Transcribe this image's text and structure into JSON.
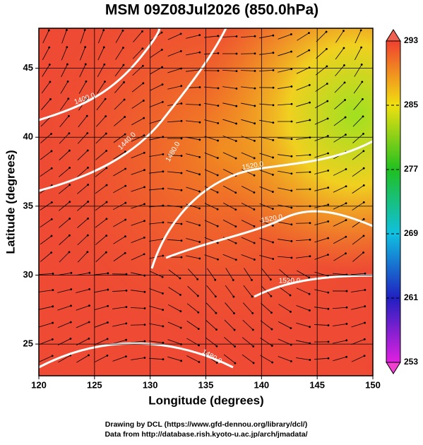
{
  "title": "MSM 09Z08Jul2026 (850.0hPa)",
  "map": {
    "x_label": "Longitude (degrees)",
    "y_label": "Latitude  (degrees)",
    "xlim": [
      120,
      150
    ],
    "ylim": [
      22.7,
      47.9
    ],
    "xticks": [
      120,
      125,
      130,
      135,
      140,
      145,
      150
    ],
    "yticks": [
      25,
      30,
      35,
      40,
      45
    ],
    "contour_labels": [
      "1400.0",
      "1440.0",
      "1480.0",
      "1520.0",
      "1520.0",
      "1520.0",
      "1480.0"
    ]
  },
  "colorbar": {
    "lim": [
      253,
      293
    ],
    "ticks": [
      253,
      261,
      269,
      277,
      285,
      293
    ]
  },
  "footer": {
    "lines": [
      "Drawing by DCL (https://www.gfd-dennou.org/library/dcl/)",
      "Data from http://database.rish.kyoto-u.ac.jp/arch/jmadata/"
    ]
  }
}
